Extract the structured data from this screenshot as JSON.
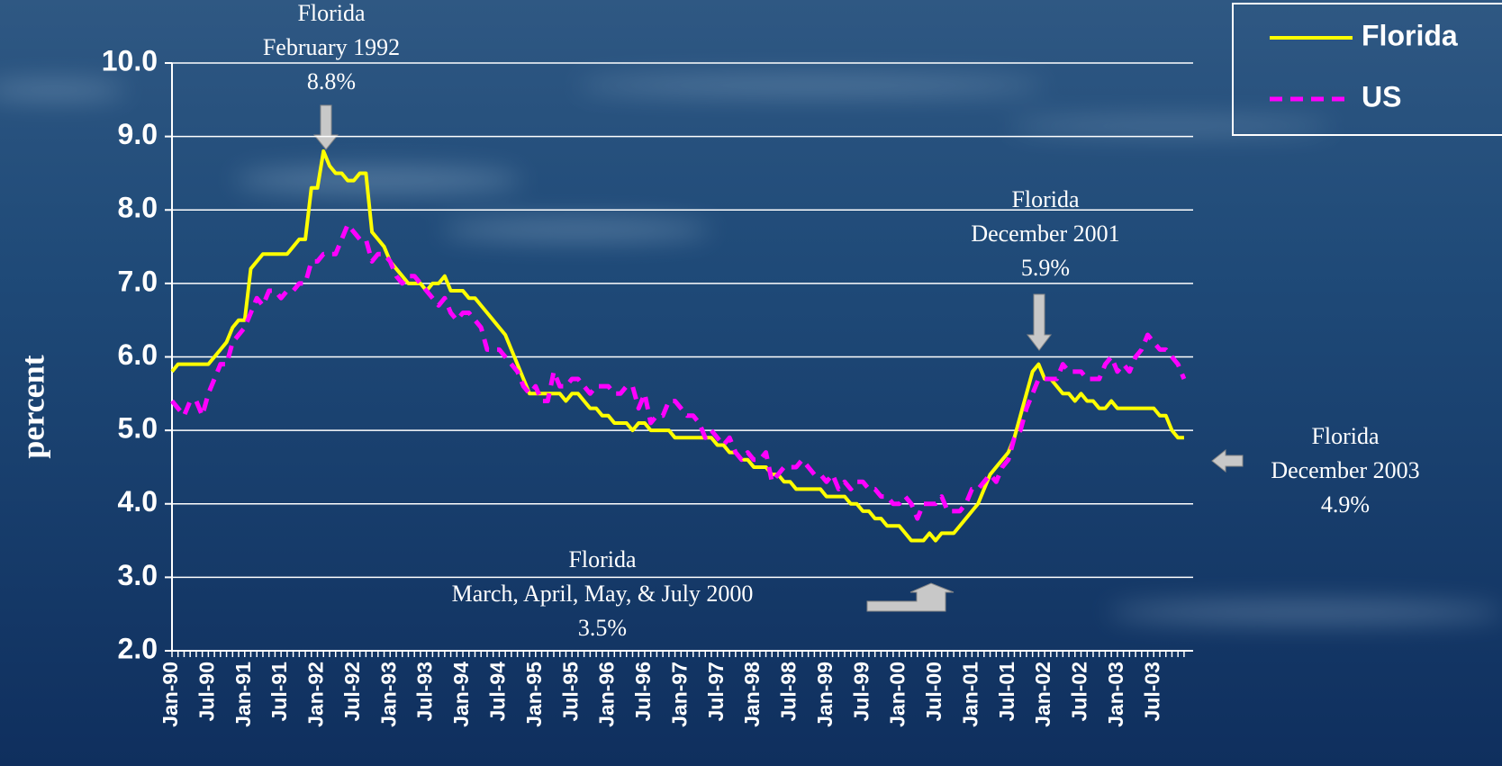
{
  "chart_data": {
    "type": "line",
    "y_label": "percent",
    "categories": [
      "Jan-90",
      null,
      null,
      null,
      null,
      null,
      "Jul-90",
      null,
      null,
      null,
      null,
      null,
      "Jan-91",
      null,
      null,
      null,
      null,
      null,
      "Jul-91",
      null,
      null,
      null,
      null,
      null,
      "Jan-92",
      null,
      null,
      null,
      null,
      null,
      "Jul-92",
      null,
      null,
      null,
      null,
      null,
      "Jan-93",
      null,
      null,
      null,
      null,
      null,
      "Jul-93",
      null,
      null,
      null,
      null,
      null,
      "Jan-94",
      null,
      null,
      null,
      null,
      null,
      "Jul-94",
      null,
      null,
      null,
      null,
      null,
      "Jan-95",
      null,
      null,
      null,
      null,
      null,
      "Jul-95",
      null,
      null,
      null,
      null,
      null,
      "Jan-96",
      null,
      null,
      null,
      null,
      null,
      "Jul-96",
      null,
      null,
      null,
      null,
      null,
      "Jan-97",
      null,
      null,
      null,
      null,
      null,
      "Jul-97",
      null,
      null,
      null,
      null,
      null,
      "Jan-98",
      null,
      null,
      null,
      null,
      null,
      "Jul-98",
      null,
      null,
      null,
      null,
      null,
      "Jan-99",
      null,
      null,
      null,
      null,
      null,
      "Jul-99",
      null,
      null,
      null,
      null,
      null,
      "Jan-00",
      null,
      null,
      null,
      null,
      null,
      "Jul-00",
      null,
      null,
      null,
      null,
      null,
      "Jan-01",
      null,
      null,
      null,
      null,
      null,
      "Jul-01",
      null,
      null,
      null,
      null,
      null,
      "Jan-02",
      null,
      null,
      null,
      null,
      null,
      "Jul-02",
      null,
      null,
      null,
      null,
      null,
      "Jan-03",
      null,
      null,
      null,
      null,
      null,
      "Jul-03",
      null,
      null,
      null,
      null,
      null
    ],
    "series": [
      {
        "name": "Florida",
        "color": "#ffff00",
        "dashed": false,
        "values": [
          5.8,
          5.9,
          5.9,
          5.9,
          5.9,
          5.9,
          5.9,
          6.0,
          6.1,
          6.2,
          6.4,
          6.5,
          6.5,
          7.2,
          7.3,
          7.4,
          7.4,
          7.4,
          7.4,
          7.4,
          7.5,
          7.6,
          7.6,
          8.3,
          8.3,
          8.8,
          8.6,
          8.5,
          8.5,
          8.4,
          8.4,
          8.5,
          8.5,
          7.7,
          7.6,
          7.5,
          7.3,
          7.2,
          7.1,
          7.0,
          7.0,
          7.0,
          6.9,
          7.0,
          7.0,
          7.1,
          6.9,
          6.9,
          6.9,
          6.8,
          6.8,
          6.7,
          6.6,
          6.5,
          6.4,
          6.3,
          6.1,
          5.9,
          5.7,
          5.5,
          5.5,
          5.5,
          5.5,
          5.5,
          5.5,
          5.4,
          5.5,
          5.5,
          5.4,
          5.3,
          5.3,
          5.2,
          5.2,
          5.1,
          5.1,
          5.1,
          5.0,
          5.1,
          5.1,
          5.0,
          5.0,
          5.0,
          5.0,
          4.9,
          4.9,
          4.9,
          4.9,
          4.9,
          4.9,
          4.9,
          4.8,
          4.8,
          4.7,
          4.7,
          4.6,
          4.6,
          4.5,
          4.5,
          4.5,
          4.4,
          4.4,
          4.3,
          4.3,
          4.2,
          4.2,
          4.2,
          4.2,
          4.2,
          4.1,
          4.1,
          4.1,
          4.1,
          4.0,
          4.0,
          3.9,
          3.9,
          3.8,
          3.8,
          3.7,
          3.7,
          3.7,
          3.6,
          3.5,
          3.5,
          3.5,
          3.6,
          3.5,
          3.6,
          3.6,
          3.6,
          3.7,
          3.8,
          3.9,
          4.0,
          4.2,
          4.4,
          4.5,
          4.6,
          4.7,
          4.9,
          5.2,
          5.5,
          5.8,
          5.9,
          5.7,
          5.7,
          5.6,
          5.5,
          5.5,
          5.4,
          5.5,
          5.4,
          5.4,
          5.3,
          5.3,
          5.4,
          5.3,
          5.3,
          5.3,
          5.3,
          5.3,
          5.3,
          5.3,
          5.2,
          5.2,
          5.0,
          4.9,
          4.9
        ]
      },
      {
        "name": "US",
        "color": "#ff00ff",
        "dashed": true,
        "values": [
          5.4,
          5.3,
          5.2,
          5.4,
          5.4,
          5.2,
          5.5,
          5.7,
          5.9,
          5.9,
          6.2,
          6.3,
          6.4,
          6.6,
          6.8,
          6.7,
          6.9,
          6.9,
          6.8,
          6.9,
          6.9,
          7.0,
          7.0,
          7.3,
          7.3,
          7.4,
          7.4,
          7.4,
          7.6,
          7.8,
          7.7,
          7.6,
          7.6,
          7.3,
          7.4,
          7.4,
          7.3,
          7.1,
          7.0,
          7.1,
          7.1,
          7.0,
          6.9,
          6.8,
          6.7,
          6.8,
          6.6,
          6.5,
          6.6,
          6.6,
          6.5,
          6.4,
          6.1,
          6.1,
          6.1,
          6.0,
          5.9,
          5.8,
          5.6,
          5.5,
          5.6,
          5.4,
          5.4,
          5.8,
          5.6,
          5.6,
          5.7,
          5.7,
          5.6,
          5.5,
          5.6,
          5.6,
          5.6,
          5.5,
          5.5,
          5.6,
          5.6,
          5.3,
          5.5,
          5.1,
          5.2,
          5.2,
          5.4,
          5.4,
          5.3,
          5.2,
          5.2,
          5.1,
          4.9,
          5.0,
          4.9,
          4.8,
          4.9,
          4.7,
          4.6,
          4.7,
          4.6,
          4.6,
          4.7,
          4.3,
          4.4,
          4.5,
          4.5,
          4.5,
          4.6,
          4.5,
          4.4,
          4.4,
          4.3,
          4.4,
          4.2,
          4.3,
          4.2,
          4.3,
          4.3,
          4.2,
          4.2,
          4.1,
          4.1,
          4.0,
          4.0,
          4.1,
          4.0,
          3.8,
          4.0,
          4.0,
          4.0,
          4.1,
          3.9,
          3.9,
          3.9,
          4.0,
          4.2,
          4.2,
          4.3,
          4.4,
          4.3,
          4.5,
          4.6,
          4.9,
          5.0,
          5.3,
          5.5,
          5.7,
          5.7,
          5.7,
          5.7,
          5.9,
          5.8,
          5.8,
          5.8,
          5.7,
          5.7,
          5.7,
          5.9,
          6.0,
          5.8,
          5.9,
          5.8,
          6.0,
          6.1,
          6.3,
          6.2,
          6.1,
          6.1,
          6.0,
          5.9,
          5.7
        ]
      }
    ],
    "ylim": [
      2,
      10
    ],
    "yticks": [
      {
        "value": 2,
        "label": "2.0"
      },
      {
        "value": 3,
        "label": "3.0"
      },
      {
        "value": 4,
        "label": "4.0"
      },
      {
        "value": 5,
        "label": "5.0"
      },
      {
        "value": 6,
        "label": "6.0"
      },
      {
        "value": 7,
        "label": "7.0"
      },
      {
        "value": 8,
        "label": "8.0"
      },
      {
        "value": 9,
        "label": "9.0"
      },
      {
        "value": 10,
        "label": "10.0"
      }
    ],
    "grid": true,
    "legend": "top-right",
    "annotations": [
      {
        "lines": [
          "Florida",
          "February 1992",
          "8.8%"
        ]
      },
      {
        "lines": [
          "Florida",
          "December 2001",
          "5.9%"
        ]
      },
      {
        "lines": [
          "Florida",
          "December 2003",
          "4.9%"
        ]
      },
      {
        "lines": [
          "Florida",
          "March, April, May,  & July 2000",
          "3.5%"
        ]
      }
    ]
  }
}
